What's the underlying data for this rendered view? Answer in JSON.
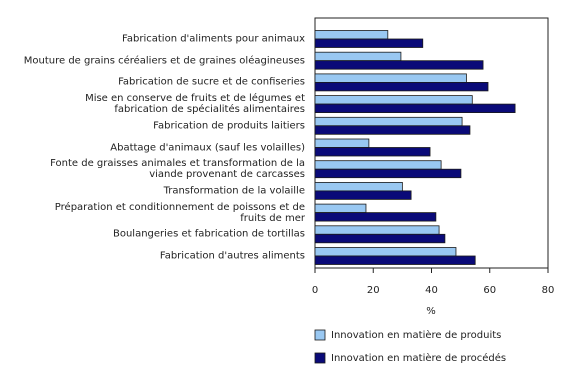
{
  "chart_data": {
    "type": "hbar",
    "categories": [
      "Fabrication d'aliments pour animaux",
      "Mouture de grains céréaliers et de graines oléagineuses",
      "Fabrication de sucre et de confiseries",
      "Mise en conserve de fruits et de légumes et\nfabrication de spécialités alimentaires",
      "Fabrication de produits laitiers",
      "Abattage d'animaux (sauf les volailles)",
      "Fonte de graisses animales et transformation de la\nviande provenant de carcasses",
      "Transformation de la volaille",
      "Préparation et conditionnement de poissons et de\nfruits de mer",
      "Boulangeries et fabrication de tortillas",
      "Fabrication d'autres aliments"
    ],
    "series": [
      {
        "name": "Innovation en matière de produits",
        "color": "#99c8f2",
        "values": [
          25,
          29.5,
          52,
          54,
          50.5,
          18.5,
          43.3,
          30,
          17.5,
          42.6,
          48.4
        ]
      },
      {
        "name": "Innovation en matière de procédés",
        "color": "#0a0a78",
        "values": [
          37,
          57.7,
          59.4,
          68.7,
          53.2,
          39.5,
          50.1,
          33,
          41.5,
          44.6,
          55
        ]
      }
    ],
    "xlabel": "%",
    "xlim": [
      0,
      80
    ],
    "xticks": [
      0,
      20,
      40,
      60,
      80
    ],
    "grid": false,
    "legend": "bottom"
  }
}
